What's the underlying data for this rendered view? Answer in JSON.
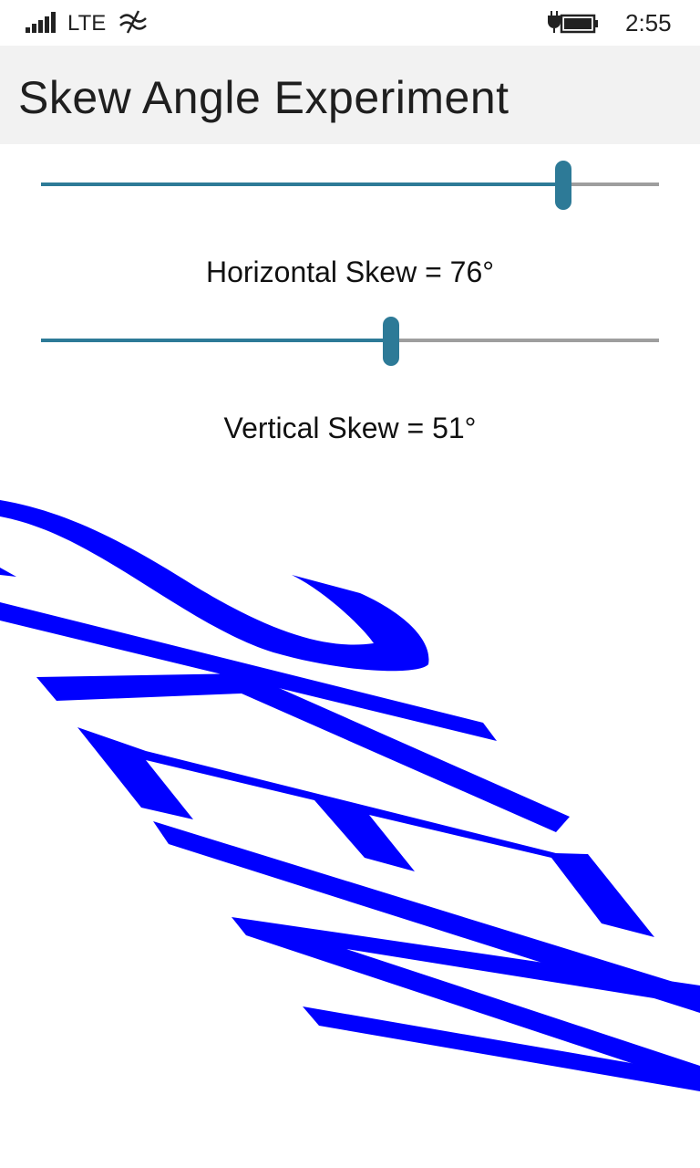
{
  "status_bar": {
    "network": "LTE",
    "time": "2:55",
    "icons": [
      "signal-bars-icon",
      "wifi-sharing-icon",
      "battery-charging-icon"
    ]
  },
  "header": {
    "title": "Skew Angle Experiment"
  },
  "controls": {
    "horizontal": {
      "label": "Horizontal Skew = 76°",
      "value": 76,
      "min": 0,
      "max": 90
    },
    "vertical": {
      "label": "Vertical Skew = 51°",
      "value": 51,
      "min": 0,
      "max": 90
    }
  },
  "colors": {
    "accent": "#2d7a97",
    "track": "#9e9e9e",
    "header_bg": "#f2f2f2",
    "art": "#0000ff"
  },
  "canvas": {
    "content": "skewed-text-art",
    "color": "#0000ff"
  }
}
